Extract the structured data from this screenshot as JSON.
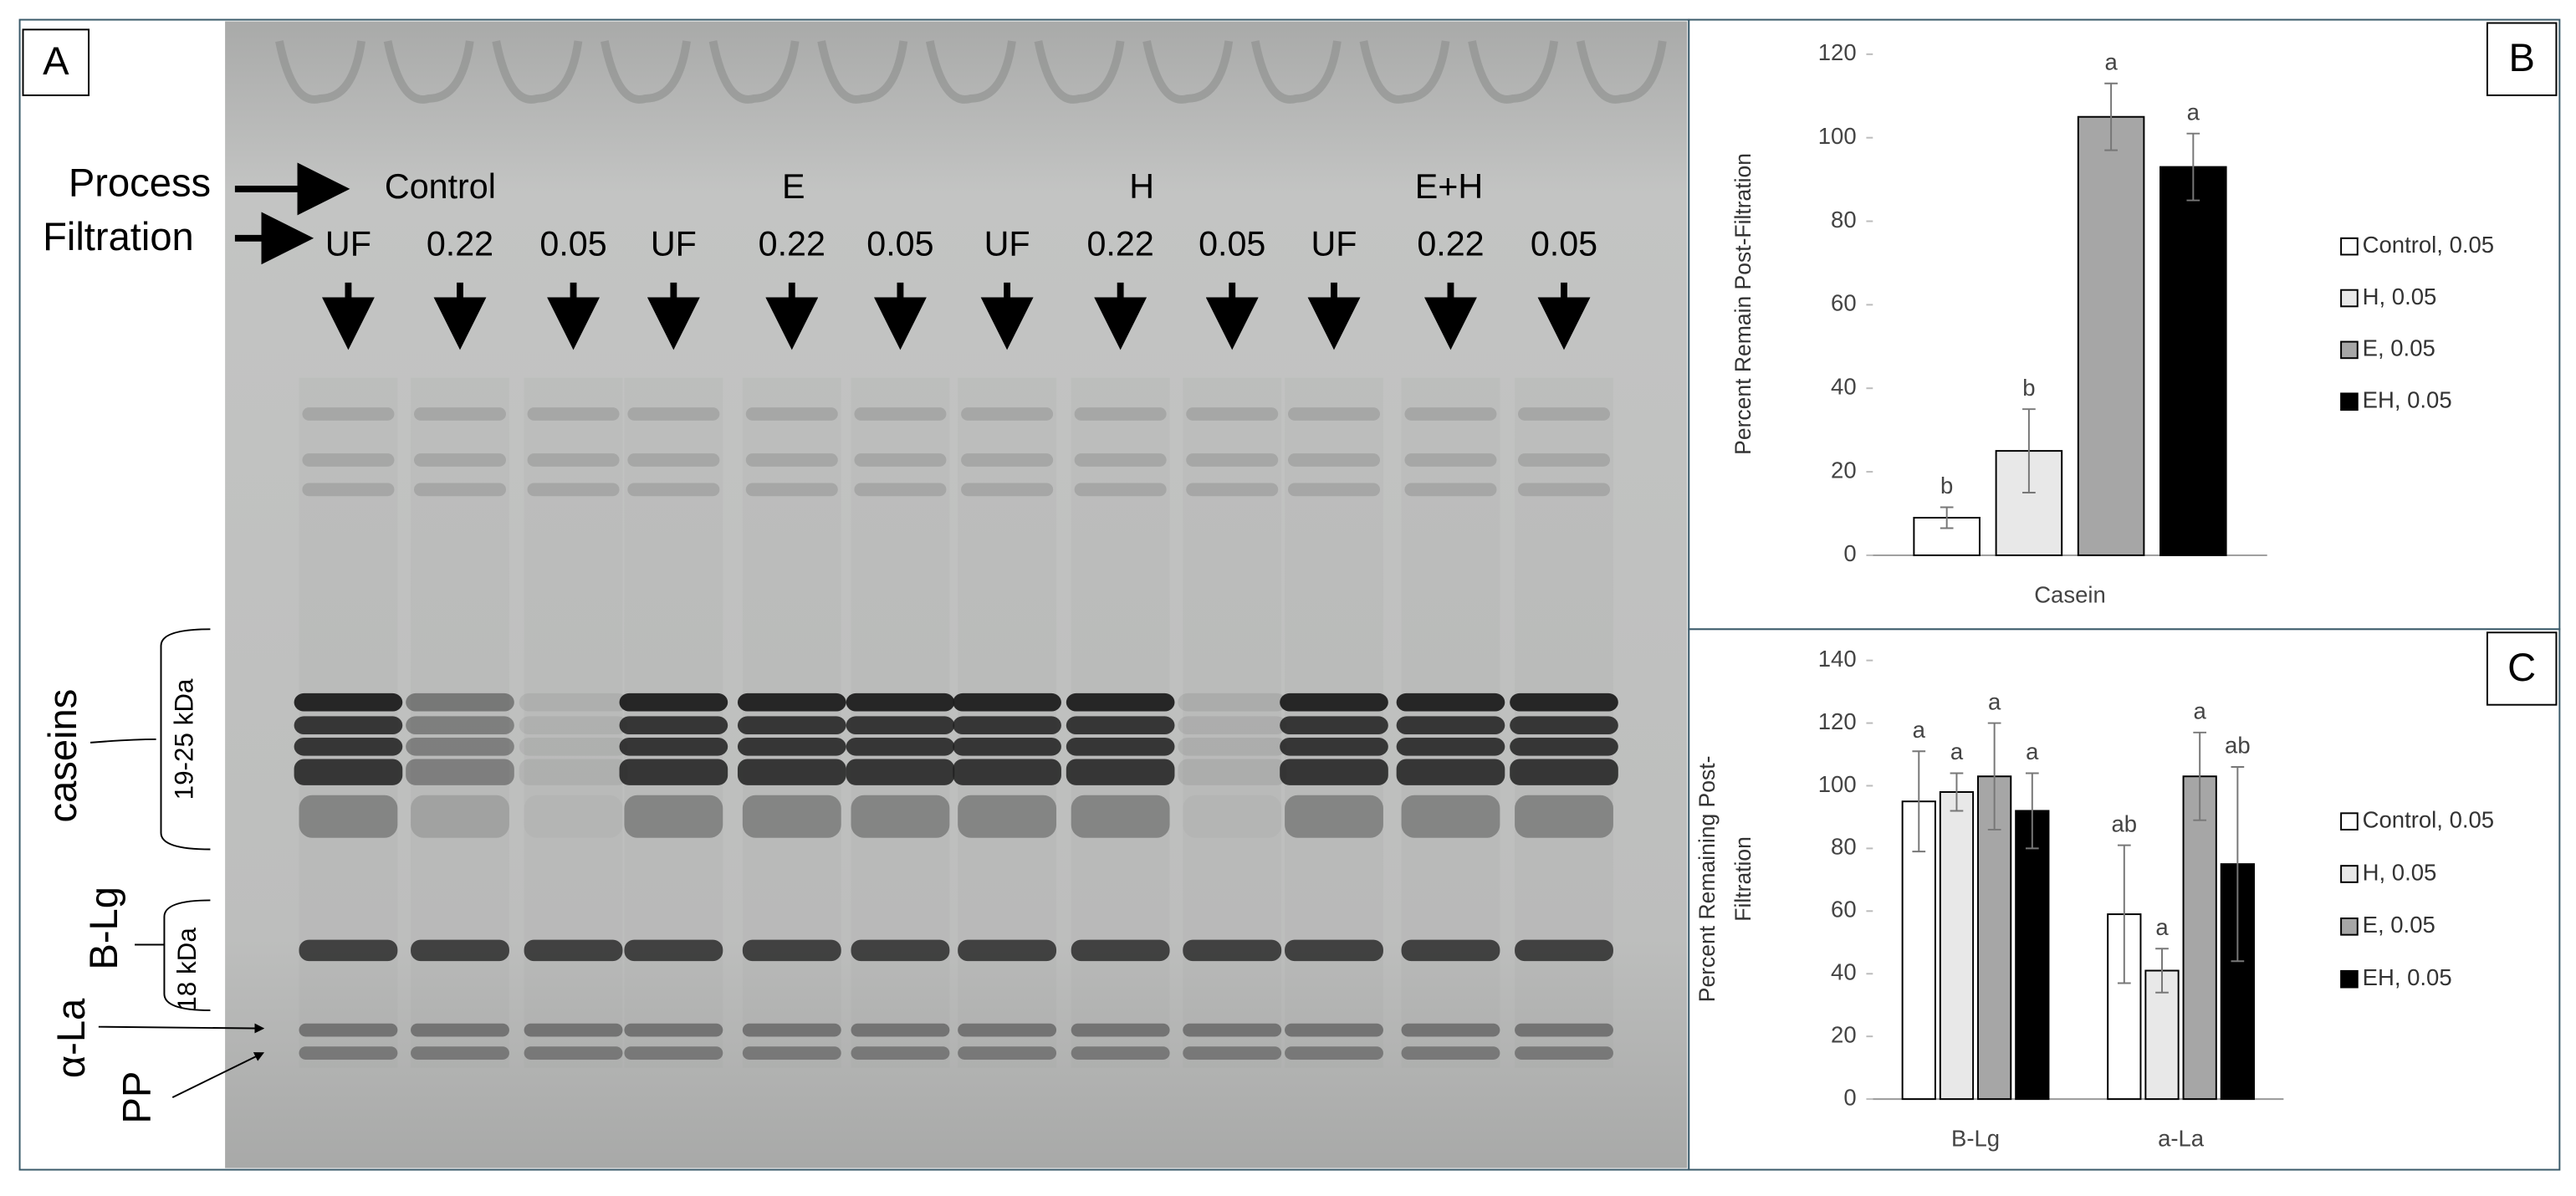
{
  "panel_a": {
    "panel": "A",
    "process_title": "Process",
    "filtration_title": "Filtration",
    "process_labels": [
      "Control",
      "E",
      "H",
      "E+H"
    ],
    "filtration_labels": [
      "UF",
      "0.22",
      "0.05",
      "UF",
      "0.22",
      "0.05",
      "UF",
      "0.22",
      "0.05",
      "UF",
      "0.22",
      "0.05"
    ],
    "caseins": "caseins",
    "caseins_size": "19-25 kDa",
    "blg": "B-Lg",
    "blg_size": "18 kDa",
    "ala": "α-La",
    "pp": "PP"
  },
  "chart_data": [
    {
      "type": "bar",
      "panel": "B",
      "ylabel": [
        "Percent Remain Post-Filtration"
      ],
      "categories": [
        "Casein"
      ],
      "ylim": [
        0,
        120
      ],
      "yticks": [
        0,
        20,
        40,
        60,
        80,
        100,
        120
      ],
      "series": [
        {
          "name": "Control, 0.05",
          "color": "#ffffff",
          "values": [
            9
          ],
          "errors": [
            2.5
          ],
          "letters": [
            "b"
          ]
        },
        {
          "name": "H, 0.05",
          "color": "#e8e8e8",
          "values": [
            25
          ],
          "errors": [
            10
          ],
          "letters": [
            "b"
          ]
        },
        {
          "name": "E, 0.05",
          "color": "#a6a6a6",
          "values": [
            105
          ],
          "errors": [
            8
          ],
          "letters": [
            "a"
          ]
        },
        {
          "name": "EH, 0.05",
          "color": "#000000",
          "values": [
            93
          ],
          "errors": [
            8
          ],
          "letters": [
            "a"
          ]
        }
      ]
    },
    {
      "type": "bar",
      "panel": "C",
      "ylabel": [
        "Percent Remaining Post-",
        "Filtration"
      ],
      "categories": [
        "B-Lg",
        "a-La"
      ],
      "ylim": [
        0,
        140
      ],
      "yticks": [
        0,
        20,
        40,
        60,
        80,
        100,
        120,
        140
      ],
      "series": [
        {
          "name": "Control, 0.05",
          "color": "#ffffff",
          "values": [
            95,
            59
          ],
          "errors": [
            16,
            22
          ],
          "letters": [
            "a",
            "ab"
          ]
        },
        {
          "name": "H, 0.05",
          "color": "#e8e8e8",
          "values": [
            98,
            41
          ],
          "errors": [
            6,
            7
          ],
          "letters": [
            "a",
            "a"
          ]
        },
        {
          "name": "E, 0.05",
          "color": "#a6a6a6",
          "values": [
            103,
            103
          ],
          "errors": [
            17,
            14
          ],
          "letters": [
            "a",
            "a"
          ]
        },
        {
          "name": "EH, 0.05",
          "color": "#000000",
          "values": [
            92,
            75
          ],
          "errors": [
            12,
            31
          ],
          "letters": [
            "a",
            "ab"
          ]
        }
      ]
    }
  ]
}
